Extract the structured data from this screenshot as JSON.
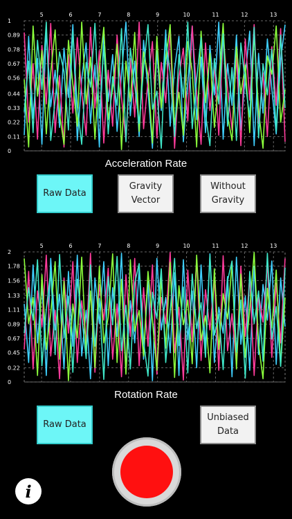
{
  "colors": {
    "background": "#000000",
    "active_button": "#6df6f7",
    "record": "#ff1010",
    "series": [
      "#3fd0ff",
      "#ff3c9c",
      "#8cff3c",
      "#3fe6c8"
    ]
  },
  "acceleration_section": {
    "caption": "Acceleration Rate",
    "buttons": [
      {
        "label": "Raw Data",
        "active": true
      },
      {
        "label": "Gravity\nVector",
        "active": false
      },
      {
        "label": "Without\nGravity",
        "active": false
      }
    ]
  },
  "rotation_section": {
    "caption": "Rotation Rate",
    "buttons": [
      {
        "label": "Raw Data",
        "active": true
      },
      {
        "label": "Unbiased\nData",
        "active": false
      }
    ]
  },
  "record_button": {
    "icon": "record-icon"
  },
  "info_button": {
    "icon": "info-icon",
    "label": "i"
  },
  "chart_data": [
    {
      "type": "line",
      "title": "",
      "xlabel": "",
      "ylabel": "",
      "x_ticks": [
        "5",
        "6",
        "7",
        "8",
        "9",
        "10",
        "11",
        "12",
        "13"
      ],
      "y_ticks": [
        "0",
        "0.11",
        "0.22",
        "0.33",
        "0.44",
        "0.56",
        "0.67",
        "0.78",
        "0.89",
        "1"
      ],
      "ylim": [
        0,
        1
      ],
      "xlim": [
        4.4,
        13.4
      ],
      "grid": true,
      "series": [
        {
          "values": [
            0.12,
            0.88,
            0.25,
            0.71,
            0.05,
            0.94,
            0.34,
            0.62,
            0.18,
            0.79,
            0.41,
            0.97,
            0.08,
            0.55,
            0.83,
            0.21,
            0.66,
            0.03,
            0.91,
            0.38,
            0.74,
            0.15,
            0.59,
            0.99,
            0.27,
            0.69,
            0.11,
            0.85,
            0.46,
            0.02,
            0.77,
            0.31,
            0.93,
            0.19,
            0.63,
            0.88,
            0.07,
            0.52,
            0.96,
            0.24,
            0.72,
            0.14,
            0.81,
            0.43,
            0.99,
            0.09,
            0.67,
            0.35,
            0.89,
            0.16,
            0.58,
            0.92,
            0.04,
            0.75,
            0.29,
            0.86,
            0.48,
            0.13,
            0.7,
            0.97
          ]
        },
        {
          "values": [
            0.91,
            0.22,
            0.67,
            0.09,
            0.81,
            0.36,
            0.98,
            0.14,
            0.58,
            0.03,
            0.74,
            0.29,
            0.87,
            0.45,
            0.12,
            0.95,
            0.33,
            0.77,
            0.06,
            0.62,
            0.19,
            0.89,
            0.41,
            0.08,
            0.71,
            0.26,
            0.99,
            0.17,
            0.54,
            0.84,
            0.1,
            0.68,
            0.37,
            0.93,
            0.02,
            0.57,
            0.79,
            0.23,
            0.96,
            0.44,
            0.05,
            0.83,
            0.31,
            0.65,
            0.12,
            0.9,
            0.48,
            0.16,
            0.73,
            0.04,
            0.86,
            0.39,
            0.97,
            0.21,
            0.6,
            0.11,
            0.8,
            0.35,
            0.94,
            0.07
          ]
        },
        {
          "values": [
            0.55,
            0.03,
            0.96,
            0.42,
            0.77,
            0.13,
            0.6,
            0.93,
            0.28,
            0.05,
            0.85,
            0.51,
            0.19,
            0.99,
            0.36,
            0.72,
            0.09,
            0.64,
            0.95,
            0.24,
            0.48,
            0.82,
            0.01,
            0.69,
            0.38,
            0.91,
            0.15,
            0.76,
            0.58,
            0.06,
            0.88,
            0.33,
            0.7,
            0.97,
            0.2,
            0.45,
            0.12,
            0.84,
            0.61,
            0.03,
            0.92,
            0.37,
            0.75,
            0.18,
            0.53,
            0.98,
            0.27,
            0.08,
            0.8,
            0.44,
            0.66,
            0.14,
            0.9,
            0.31,
            0.02,
            0.73,
            0.59,
            0.96,
            0.22,
            0.47
          ]
        },
        {
          "values": [
            0.3,
            0.69,
            0.14,
            0.85,
            0.47,
            0.99,
            0.08,
            0.39,
            0.76,
            0.61,
            0.16,
            0.92,
            0.34,
            0.05,
            0.68,
            0.49,
            0.98,
            0.25,
            0.81,
            0.13,
            0.57,
            0.35,
            0.94,
            0.07,
            0.79,
            0.5,
            0.21,
            0.63,
            0.97,
            0.32,
            0.46,
            0.02,
            0.86,
            0.6,
            0.11,
            0.74,
            0.41,
            0.99,
            0.17,
            0.55,
            0.87,
            0.28,
            0.04,
            0.71,
            0.36,
            0.9,
            0.19,
            0.64,
            0.08,
            0.83,
            0.52,
            0.26,
            0.95,
            0.1,
            0.67,
            0.43,
            0.78,
            0.15,
            0.89,
            0.33
          ]
        }
      ]
    },
    {
      "type": "line",
      "title": "",
      "xlabel": "",
      "ylabel": "",
      "x_ticks": [
        "5",
        "6",
        "7",
        "8",
        "9",
        "10",
        "11",
        "12",
        "13"
      ],
      "y_ticks": [
        "0",
        "0.22",
        "0.45",
        "0.67",
        "0.89",
        "1.11",
        "1.33",
        "1.56",
        "1.78",
        "2"
      ],
      "ylim": [
        0,
        2
      ],
      "xlim": [
        4.4,
        13.4
      ],
      "grid": true,
      "series": [
        {
          "values": [
            1.2,
            0.3,
            1.8,
            0.6,
            1.5,
            0.1,
            1.9,
            0.8,
            1.35,
            0.2,
            1.7,
            0.55,
            1.95,
            0.4,
            1.1,
            0.05,
            1.6,
            0.9,
            1.85,
            0.25,
            1.45,
            0.7,
            1.98,
            0.15,
            1.25,
            0.6,
            1.75,
            0.35,
            1.55,
            0.02,
            1.9,
            0.8,
            1.3,
            0.45,
            1.68,
            0.1,
            1.88,
            0.65,
            1.4,
            0.22,
            1.8,
            0.5,
            1.97,
            0.3,
            1.15,
            0.75,
            1.62,
            0.08,
            1.92,
            0.58,
            1.32,
            0.18,
            1.78,
            0.42,
            1.5,
            0.95,
            1.86,
            0.27,
            1.6,
            0.85
          ]
        },
        {
          "values": [
            0.5,
            1.7,
            0.2,
            1.4,
            0.85,
            1.95,
            0.4,
            1.1,
            0.05,
            1.6,
            0.75,
            1.85,
            0.3,
            1.25,
            0.6,
            1.98,
            0.15,
            1.5,
            0.95,
            1.75,
            0.35,
            1.2,
            0.08,
            1.65,
            0.7,
            1.9,
            0.25,
            1.45,
            0.55,
            1.8,
            0.12,
            1.3,
            0.9,
            1.99,
            0.45,
            1.15,
            0.03,
            1.72,
            0.62,
            1.88,
            0.33,
            1.42,
            0.8,
            1.58,
            0.18,
            1.94,
            0.48,
            1.05,
            0.28,
            1.78,
            0.7,
            1.62,
            0.1,
            1.35,
            0.92,
            1.83,
            0.38,
            1.52,
            0.6,
            1.9
          ]
        },
        {
          "values": [
            1.9,
            0.9,
            1.3,
            0.1,
            1.65,
            0.5,
            1.05,
            1.85,
            0.35,
            1.55,
            0.02,
            1.2,
            0.68,
            1.92,
            0.45,
            1.4,
            0.22,
            1.78,
            0.6,
            1.0,
            1.97,
            0.3,
            1.58,
            0.12,
            1.88,
            0.78,
            1.1,
            0.4,
            1.7,
            0.95,
            0.18,
            1.6,
            0.52,
            1.84,
            0.07,
            1.48,
            0.88,
            1.26,
            0.28,
            1.95,
            0.64,
            1.02,
            0.14,
            1.74,
            0.5,
            1.36,
            0.97,
            1.82,
            0.2,
            1.66,
            0.38,
            1.12,
            1.99,
            0.58,
            0.05,
            1.44,
            0.83,
            1.72,
            0.25,
            1.3
          ]
        },
        {
          "values": [
            0.75,
            1.45,
            0.95,
            1.88,
            0.25,
            1.12,
            1.7,
            0.42,
            1.96,
            0.68,
            1.32,
            0.15,
            1.58,
            1.02,
            0.36,
            1.8,
            0.55,
            1.28,
            0.04,
            1.62,
            0.88,
            1.93,
            0.48,
            1.18,
            0.2,
            1.52,
            1.82,
            0.62,
            0.09,
            1.38,
            0.98,
            1.74,
            0.3,
            1.08,
            1.9,
            0.56,
            1.46,
            0.14,
            1.66,
            0.82,
            1.22,
            0.38,
            1.95,
            0.72,
            1.04,
            0.19,
            1.56,
            1.86,
            0.46,
            1.26,
            0.06,
            1.7,
            0.9,
            1.4,
            0.32,
            1.98,
            0.66,
            1.16,
            0.24,
            1.76
          ]
        }
      ]
    }
  ]
}
